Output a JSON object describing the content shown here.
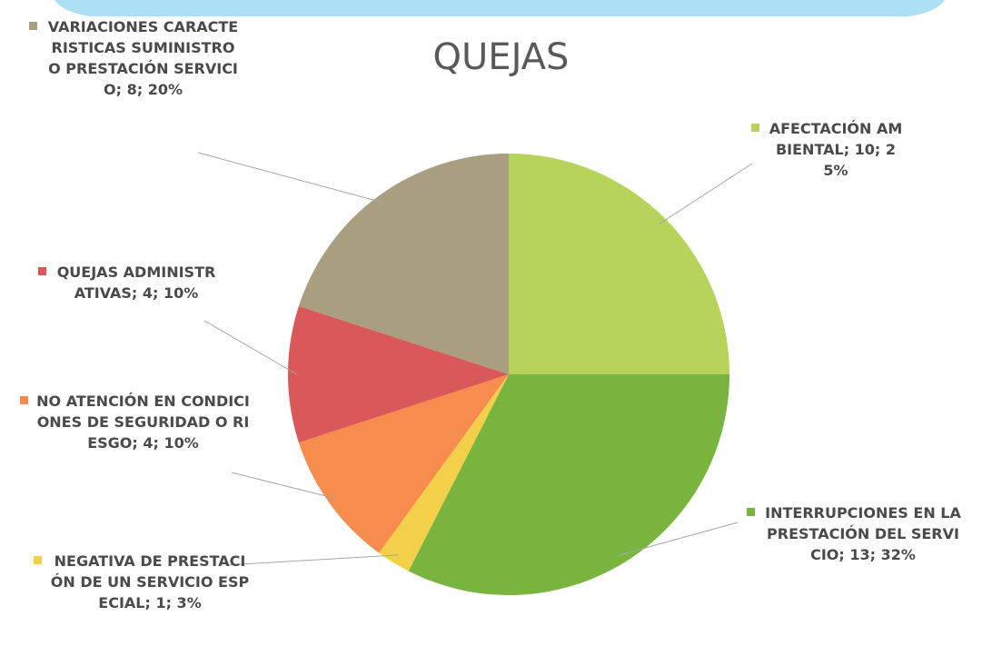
{
  "chart_data": {
    "type": "pie",
    "title": "QUEJAS",
    "values": [
      10,
      13,
      1,
      4,
      4,
      8
    ],
    "value_labels": [
      "AFECTACIÓN AMBIENTAL; 10; 25%",
      "INTERRUPCIONES EN LA PRESTACIÓN DEL SERVICIO; 13; 32%",
      "NEGATIVA DE PRESTACIÓN DE UN SERVICIO ESPECIAL; 1; 3%",
      "NO ATENCIÓN EN CONDICIONES DE SEGURIDAD O RIESGO; 4; 10%",
      "QUEJAS ADMINISTRATIVAS; 4; 10%",
      "VARIACIONES CARACTERISTICAS SUMINISTRO O PRESTACIÓN SERVICIO; 8; 20%"
    ],
    "colors": [
      "#b6d45c",
      "#79b43f",
      "#f3d04a",
      "#f68c4e",
      "#d9595a",
      "#a99f80"
    ]
  }
}
